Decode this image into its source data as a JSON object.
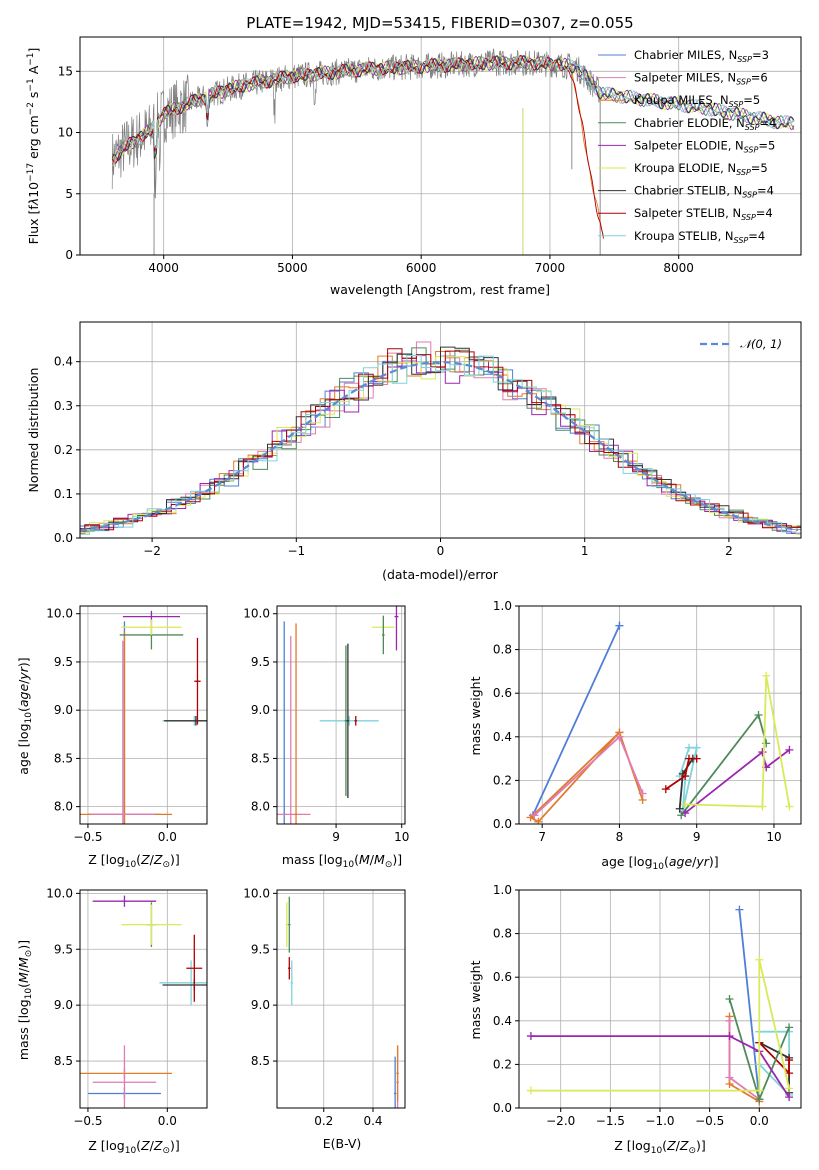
{
  "colors": {
    "chabrier_miles": "#4f7fd6",
    "salpeter_miles": "#e07bb3",
    "kroupa_miles": "#e07b2a",
    "chabrier_elodie": "#4f8a5a",
    "salpeter_elodie": "#9b27b0",
    "kroupa_elodie": "#d9ea57",
    "chabrier_stelib": "#333333",
    "salpeter_stelib": "#b00000",
    "kroupa_stelib": "#7fd3dc",
    "data": "#808080"
  },
  "chart_data": [
    {
      "id": "spectrum",
      "type": "line",
      "title": "PLATE=1942, MJD=53415, FIBERID=0307, z=0.055",
      "xlabel": "wavelength [Angstrom, rest frame]",
      "ylabel": "Flux [f$_\\lambda$10$^{-17}$ erg cm$^{-2}$ s$^{-1}$ A$^{-1}$]",
      "xlim": [
        3350,
        8950
      ],
      "ylim": [
        0,
        17.8
      ],
      "xticks": [
        "4000",
        "5000",
        "6000",
        "7000",
        "8000"
      ],
      "yticks": [
        "0",
        "5",
        "10",
        "15"
      ],
      "grid": true,
      "legend_position": "top-right",
      "legend": [
        {
          "name": "Chabrier MILES, N",
          "sub": "SSP",
          "tail": "=3"
        },
        {
          "name": "Salpeter MILES, N",
          "sub": "SSP",
          "tail": "=6"
        },
        {
          "name": "Kroupa MILES, N",
          "sub": "SSP",
          "tail": "=5"
        },
        {
          "name": "Chabrier ELODIE, N",
          "sub": "SSP",
          "tail": "=4"
        },
        {
          "name": "Salpeter ELODIE, N",
          "sub": "SSP",
          "tail": "=5"
        },
        {
          "name": "Kroupa ELODIE, N",
          "sub": "SSP",
          "tail": "=5"
        },
        {
          "name": "Chabrier STELIB, N",
          "sub": "SSP",
          "tail": "=4"
        },
        {
          "name": "Salpeter STELIB, N",
          "sub": "SSP",
          "tail": "=4"
        },
        {
          "name": "Kroupa STELIB, N",
          "sub": "SSP",
          "tail": "=4"
        }
      ],
      "model_continuum": {
        "x": [
          3600,
          3700,
          3800,
          3900,
          4000,
          4100,
          4200,
          4300,
          4400,
          4500,
          4600,
          4800,
          5000,
          5200,
          5400,
          5600,
          5800,
          6000,
          6200,
          6400,
          6600,
          6800,
          7000,
          7200,
          7400,
          7600,
          7800,
          8000,
          8200,
          8400,
          8600,
          8800
        ],
        "y": [
          7.8,
          8.8,
          9.5,
          10.2,
          11.5,
          12.0,
          12.4,
          12.8,
          13.2,
          13.5,
          13.8,
          14.2,
          14.6,
          14.8,
          15.0,
          15.2,
          15.3,
          15.4,
          15.5,
          15.6,
          15.7,
          15.7,
          15.6,
          15.4,
          13.2,
          12.9,
          12.6,
          12.3,
          12.0,
          11.6,
          11.2,
          10.8
        ]
      }
    },
    {
      "id": "residuals",
      "type": "bar",
      "xlabel": "(data-model)/error",
      "ylabel": "Normed distribution",
      "xlim": [
        -2.5,
        2.5
      ],
      "ylim": [
        0,
        0.49
      ],
      "xticks": [
        "−2",
        "−1",
        "0",
        "1",
        "2"
      ],
      "yticks": [
        "0.0",
        "0.1",
        "0.2",
        "0.3",
        "0.4"
      ],
      "grid": true,
      "legend_position": "top-right",
      "legend": [
        {
          "name": "N(0,1)",
          "style": "dashed"
        }
      ]
    },
    {
      "id": "age_vs_Z",
      "type": "scatter",
      "xlabel": "Z [log10(Z/Z☉)]",
      "ylabel": "age  [log10(age/yr)]",
      "xlim": [
        -0.55,
        0.25
      ],
      "ylim": [
        7.82,
        10.08
      ],
      "xticks": [
        "−0.5",
        "0.0"
      ],
      "yticks": [
        "8.0",
        "8.5",
        "9.0",
        "9.5",
        "10.0"
      ],
      "grid": true,
      "points": [
        {
          "s": "chabrier_miles",
          "x": -0.27,
          "y": 7.92,
          "xerr": 0.23,
          "yerr": 2.0
        },
        {
          "s": "kroupa_miles",
          "x": -0.27,
          "y": 7.92,
          "xerr": 0.3,
          "yerr": 1.9
        },
        {
          "s": "salpeter_miles",
          "x": -0.28,
          "y": 7.92,
          "xerr": 0.2,
          "yerr": 1.8
        },
        {
          "s": "kroupa_stelib",
          "x": 0.17,
          "y": 8.89,
          "xerr": 0.2,
          "yerr": 0.05
        },
        {
          "s": "chabrier_stelib",
          "x": 0.18,
          "y": 8.89,
          "xerr": 0.2,
          "yerr": 0.05
        },
        {
          "s": "salpeter_stelib",
          "x": 0.19,
          "y": 9.3,
          "xerr": 0.02,
          "yerr": 0.45
        },
        {
          "s": "chabrier_elodie",
          "x": -0.1,
          "y": 9.78,
          "xerr": 0.2,
          "yerr": 0.15
        },
        {
          "s": "salpeter_elodie",
          "x": -0.1,
          "y": 9.97,
          "xerr": 0.18,
          "yerr": 0.06
        },
        {
          "s": "kroupa_elodie",
          "x": -0.1,
          "y": 9.86,
          "xerr": 0.19,
          "yerr": 0.08
        }
      ]
    },
    {
      "id": "age_vs_mass",
      "type": "scatter",
      "xlabel": "mass [log10(M/M☉)]",
      "ylabel": "",
      "xlim": [
        8.1,
        10.05
      ],
      "ylim": [
        7.82,
        10.08
      ],
      "xticks": [
        "9",
        "10"
      ],
      "yticks": [
        "8.0",
        "8.5",
        "9.0",
        "9.5",
        "10.0"
      ],
      "grid": true,
      "points": [
        {
          "s": "chabrier_miles",
          "x": 8.21,
          "y": 7.92,
          "xerr": 0.02,
          "yerr": 2.0
        },
        {
          "s": "salpeter_miles",
          "x": 8.31,
          "y": 7.92,
          "xerr": 0.3,
          "yerr": 1.85
        },
        {
          "s": "kroupa_miles",
          "x": 8.39,
          "y": 7.92,
          "xerr": 0.02,
          "yerr": 1.98
        },
        {
          "s": "kroupa_stelib",
          "x": 9.2,
          "y": 8.89,
          "xerr": 0.45,
          "yerr": 0.05
        },
        {
          "s": "chabrier_elodie",
          "x": 9.15,
          "y": 8.89,
          "xerr": 0.02,
          "yerr": 0.78
        },
        {
          "s": "salpeter_stelib",
          "x": 9.3,
          "y": 8.89,
          "xerr": 0.02,
          "yerr": 0.05
        },
        {
          "s": "chabrier_stelib",
          "x": 9.18,
          "y": 8.89,
          "xerr": 0.02,
          "yerr": 0.8
        },
        {
          "s": "kroupa_elodie",
          "x": 9.72,
          "y": 9.86,
          "xerr": 0.17,
          "yerr": 0.1
        },
        {
          "s": "chabrier_elodie",
          "x": 9.72,
          "y": 9.78,
          "xerr": 0.02,
          "yerr": 0.2
        },
        {
          "s": "salpeter_elodie",
          "x": 9.92,
          "y": 9.97,
          "xerr": 0.03,
          "yerr": 0.35
        }
      ]
    },
    {
      "id": "massweight_vs_age",
      "type": "line",
      "xlabel": "age  [log10(age/yr)]",
      "ylabel": "mass weight",
      "xlim": [
        6.7,
        10.35
      ],
      "ylim": [
        0,
        1.0
      ],
      "xticks": [
        "7",
        "8",
        "9",
        "10"
      ],
      "yticks": [
        "0.0",
        "0.2",
        "0.4",
        "0.6",
        "0.8",
        "1.0"
      ],
      "grid": true,
      "series": [
        {
          "s": "chabrier_miles",
          "x": [
            8.0,
            6.88,
            8.0
          ],
          "y": [
            0.91,
            0.04,
            0.91
          ]
        },
        {
          "s": "kroupa_miles",
          "x": [
            8.0,
            6.85,
            6.95,
            8.0,
            8.3
          ],
          "y": [
            0.42,
            0.03,
            0.01,
            0.42,
            0.11
          ]
        },
        {
          "s": "salpeter_miles",
          "x": [
            8.0,
            6.9,
            8.0,
            8.3
          ],
          "y": [
            0.4,
            0.04,
            0.4,
            0.14
          ]
        },
        {
          "s": "kroupa_stelib",
          "x": [
            8.78,
            8.9,
            9.0,
            8.82,
            8.85
          ],
          "y": [
            0.22,
            0.35,
            0.35,
            0.06,
            0.2
          ]
        },
        {
          "s": "chabrier_stelib",
          "x": [
            8.78,
            8.82,
            8.95
          ],
          "y": [
            0.07,
            0.23,
            0.3
          ]
        },
        {
          "s": "salpeter_stelib",
          "x": [
            8.6,
            8.85,
            8.9,
            9.0
          ],
          "y": [
            0.16,
            0.22,
            0.3,
            0.3
          ]
        },
        {
          "s": "chabrier_elodie",
          "x": [
            8.8,
            9.8,
            9.9
          ],
          "y": [
            0.04,
            0.5,
            0.37
          ]
        },
        {
          "s": "salpeter_elodie",
          "x": [
            8.85,
            9.85,
            9.9,
            10.2
          ],
          "y": [
            0.05,
            0.33,
            0.26,
            0.34
          ]
        },
        {
          "s": "kroupa_elodie",
          "x": [
            8.85,
            9.85,
            9.9,
            10.2
          ],
          "y": [
            0.09,
            0.08,
            0.68,
            0.08
          ]
        }
      ]
    },
    {
      "id": "mass_vs_Z",
      "type": "scatter",
      "xlabel": "Z [log10(Z/Z☉)]",
      "ylabel": "mass [log10(M/M☉)]",
      "xlim": [
        -0.55,
        0.25
      ],
      "ylim": [
        8.08,
        10.03
      ],
      "xticks": [
        "−0.5",
        "0.0"
      ],
      "yticks": [
        "8.5",
        "9.0",
        "9.5",
        "10.0"
      ],
      "grid": true,
      "points": [
        {
          "s": "chabrier_miles",
          "x": -0.27,
          "y": 8.21,
          "xerr": 0.23,
          "yerr": 0.05
        },
        {
          "s": "kroupa_miles",
          "x": -0.27,
          "y": 8.39,
          "xerr": 0.3,
          "yerr": 0.05
        },
        {
          "s": "salpeter_miles",
          "x": -0.27,
          "y": 8.31,
          "xerr": 0.2,
          "yerr": 0.33
        },
        {
          "s": "kroupa_stelib",
          "x": 0.15,
          "y": 9.2,
          "xerr": 0.2,
          "yerr": 0.2
        },
        {
          "s": "chabrier_stelib",
          "x": 0.17,
          "y": 9.18,
          "xerr": 0.2,
          "yerr": 0.05
        },
        {
          "s": "salpeter_stelib",
          "x": 0.17,
          "y": 9.33,
          "xerr": 0.05,
          "yerr": 0.3
        },
        {
          "s": "chabrier_elodie",
          "x": -0.1,
          "y": 9.72,
          "xerr": 0.03,
          "yerr": 0.2
        },
        {
          "s": "kroupa_elodie",
          "x": -0.1,
          "y": 9.72,
          "xerr": 0.19,
          "yerr": 0.18
        },
        {
          "s": "salpeter_elodie",
          "x": -0.27,
          "y": 9.93,
          "xerr": 0.2,
          "yerr": 0.05
        }
      ]
    },
    {
      "id": "mass_vs_ebv",
      "type": "scatter",
      "xlabel": "E(B-V)",
      "ylabel": "",
      "xlim": [
        0.01,
        0.53
      ],
      "ylim": [
        8.08,
        10.03
      ],
      "xticks": [
        "0.2",
        "0.4"
      ],
      "yticks": [
        "8.5",
        "9.0",
        "9.5",
        "10.0"
      ],
      "grid": true,
      "points": [
        {
          "s": "chabrier_miles",
          "x": 0.49,
          "y": 8.21,
          "xerr": 0.005,
          "yerr": 0.33
        },
        {
          "s": "salpeter_miles",
          "x": 0.5,
          "y": 8.31,
          "xerr": 0.005,
          "yerr": 0.33
        },
        {
          "s": "kroupa_miles",
          "x": 0.5,
          "y": 8.39,
          "xerr": 0.005,
          "yerr": 0.25
        },
        {
          "s": "kroupa_stelib",
          "x": 0.07,
          "y": 9.2,
          "xerr": 0.005,
          "yerr": 0.2
        },
        {
          "s": "salpeter_stelib",
          "x": 0.06,
          "y": 9.33,
          "xerr": 0.005,
          "yerr": 0.1
        },
        {
          "s": "chabrier_elodie",
          "x": 0.06,
          "y": 9.72,
          "xerr": 0.005,
          "yerr": 0.25
        },
        {
          "s": "kroupa_elodie",
          "x": 0.05,
          "y": 9.72,
          "xerr": 0.005,
          "yerr": 0.2
        }
      ]
    },
    {
      "id": "massweight_vs_Z",
      "type": "line",
      "xlabel": "Z [log10(Z/Z☉)]",
      "ylabel": "mass weight",
      "xlim": [
        -2.42,
        0.42
      ],
      "ylim": [
        0,
        1.0
      ],
      "xticks": [
        "−2.0",
        "−1.5",
        "−1.0",
        "−0.5",
        "0.0"
      ],
      "yticks": [
        "0.0",
        "0.2",
        "0.4",
        "0.6",
        "0.8",
        "1.0"
      ],
      "grid": true,
      "series": [
        {
          "s": "chabrier_miles",
          "x": [
            -0.2,
            0.0,
            0.0
          ],
          "y": [
            0.91,
            0.04,
            0.04
          ]
        },
        {
          "s": "kroupa_miles",
          "x": [
            -0.3,
            -0.3,
            0.0
          ],
          "y": [
            0.42,
            0.11,
            0.03
          ]
        },
        {
          "s": "salpeter_miles",
          "x": [
            -0.3,
            -0.3,
            0.0
          ],
          "y": [
            0.4,
            0.14,
            0.04
          ]
        },
        {
          "s": "kroupa_stelib",
          "x": [
            0.0,
            0.3,
            0.3,
            0.0
          ],
          "y": [
            0.35,
            0.35,
            0.06,
            0.2
          ]
        },
        {
          "s": "chabrier_stelib",
          "x": [
            0.0,
            0.3,
            0.3
          ],
          "y": [
            0.3,
            0.23,
            0.07
          ]
        },
        {
          "s": "salpeter_stelib",
          "x": [
            0.0,
            0.3,
            0.3
          ],
          "y": [
            0.3,
            0.16,
            0.22
          ]
        },
        {
          "s": "chabrier_elodie",
          "x": [
            -0.3,
            0.0,
            0.3
          ],
          "y": [
            0.5,
            0.04,
            0.37
          ]
        },
        {
          "s": "salpeter_elodie",
          "x": [
            -2.3,
            -0.3,
            0.0,
            0.3
          ],
          "y": [
            0.33,
            0.33,
            0.26,
            0.05
          ]
        },
        {
          "s": "kroupa_elodie",
          "x": [
            -2.3,
            0.0,
            0.0,
            0.3
          ],
          "y": [
            0.08,
            0.08,
            0.68,
            0.09
          ]
        }
      ]
    }
  ]
}
